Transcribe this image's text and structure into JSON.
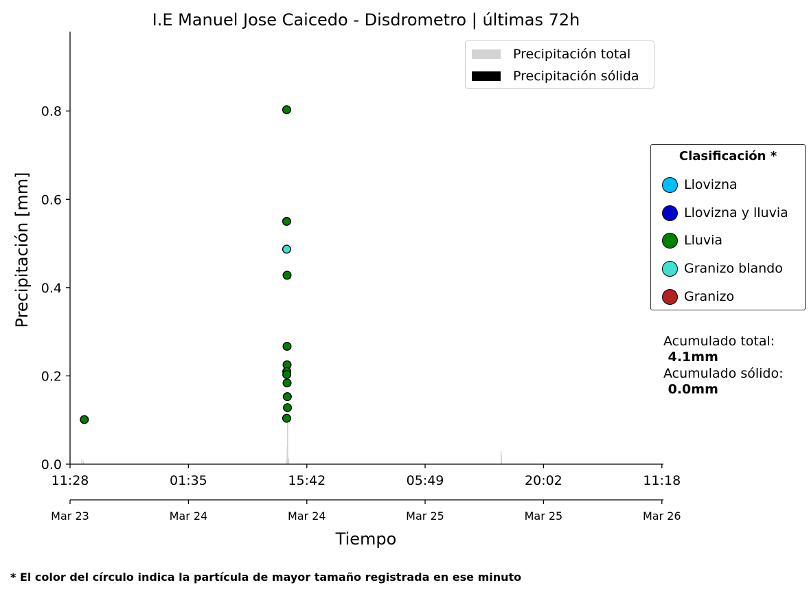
{
  "chart_data": {
    "type": "scatter",
    "title": "I.E Manuel Jose Caicedo - Disdrometro  |  últimas 72h",
    "xlabel": "Tiempo",
    "ylabel": "Precipitación [mm]",
    "ylim": [
      0,
      0.98
    ],
    "xlim": [
      0,
      4320
    ],
    "grid": false,
    "yticks": [
      0.0,
      0.2,
      0.4,
      0.6,
      0.8
    ],
    "xtick_positions": [
      0,
      862,
      1724,
      2585,
      3447,
      4309
    ],
    "xtick_labels_time": [
      "11:28",
      "01:35",
      "15:42",
      "05:49",
      "20:02",
      "11:18"
    ],
    "xtick_labels_date": [
      "Mar 23",
      "Mar 24",
      "Mar 24",
      "Mar 25",
      "Mar 25",
      "Mar 26"
    ],
    "x_unit": "minutes from 11:28 Mar 23",
    "bar_legend": [
      {
        "label": "Precipitación total",
        "color": "#d3d3d3"
      },
      {
        "label": "Precipitación sólida",
        "color": "#000000"
      }
    ],
    "bars_total": [
      {
        "x": 85,
        "value": 0.012
      },
      {
        "x": 97,
        "value": 0.008
      },
      {
        "x": 1577,
        "value": 0.01
      },
      {
        "x": 1580,
        "value": 0.04
      },
      {
        "x": 1583,
        "value": 0.1
      },
      {
        "x": 1585,
        "value": 0.09
      },
      {
        "x": 1588,
        "value": 0.015
      },
      {
        "x": 1593,
        "value": 0.012
      },
      {
        "x": 3138,
        "value": 0.03
      },
      {
        "x": 3143,
        "value": 0.02
      }
    ],
    "classification_title": "Clasificación *",
    "classes": [
      {
        "label": "Llovizna",
        "color": "#00bfff"
      },
      {
        "label": "Llovizna y lluvia",
        "color": "#0000cd"
      },
      {
        "label": "Lluvia",
        "color": "#008000"
      },
      {
        "label": "Granizo blando",
        "color": "#40e0d0"
      },
      {
        "label": "Granizo",
        "color": "#b22222"
      }
    ],
    "points": [
      {
        "x": 104,
        "y": 0.101,
        "class": "Lluvia"
      },
      {
        "x": 1577,
        "y": 0.803,
        "class": "Lluvia"
      },
      {
        "x": 1577,
        "y": 0.55,
        "class": "Lluvia"
      },
      {
        "x": 1577,
        "y": 0.487,
        "class": "Granizo blando"
      },
      {
        "x": 1580,
        "y": 0.428,
        "class": "Lluvia"
      },
      {
        "x": 1580,
        "y": 0.267,
        "class": "Lluvia"
      },
      {
        "x": 1580,
        "y": 0.225,
        "class": "Lluvia"
      },
      {
        "x": 1578,
        "y": 0.21,
        "class": "Lluvia"
      },
      {
        "x": 1578,
        "y": 0.203,
        "class": "Lluvia"
      },
      {
        "x": 1580,
        "y": 0.184,
        "class": "Lluvia"
      },
      {
        "x": 1582,
        "y": 0.153,
        "class": "Lluvia"
      },
      {
        "x": 1583,
        "y": 0.128,
        "class": "Lluvia"
      },
      {
        "x": 1577,
        "y": 0.104,
        "class": "Lluvia"
      }
    ]
  },
  "accumulated": {
    "total_label": "Acumulado total:",
    "total_value": " 4.1mm",
    "solid_label": "Acumulado sólido:",
    "solid_value": " 0.0mm"
  },
  "footnote": "* El color del círculo indica la partícula de mayor tamaño registrada en ese minuto"
}
